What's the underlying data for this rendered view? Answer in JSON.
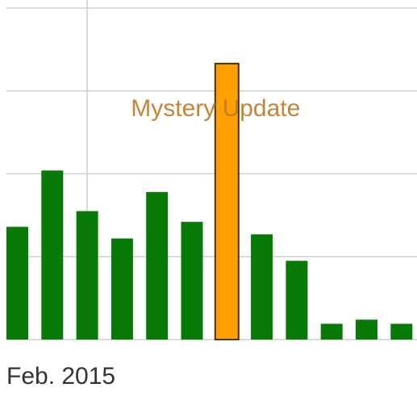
{
  "chart_data": {
    "type": "bar",
    "annotation": "Mystery Update",
    "x_label": "Feb. 2015",
    "categories": [
      null,
      null,
      null,
      null,
      null,
      null,
      null,
      null,
      null,
      null,
      null,
      null
    ],
    "values": [
      1.36,
      2.04,
      1.55,
      1.22,
      1.78,
      1.42,
      3.33,
      1.27,
      0.95,
      0.19,
      0.24,
      0.19
    ],
    "colors": [
      "#077a07",
      "#077a07",
      "#077a07",
      "#077a07",
      "#077a07",
      "#077a07",
      "#ffa000",
      "#077a07",
      "#077a07",
      "#077a07",
      "#077a07",
      "#077a07"
    ],
    "ylim": [
      0,
      4
    ],
    "yticks": [
      0,
      1,
      2,
      3,
      4
    ],
    "grid": true
  }
}
